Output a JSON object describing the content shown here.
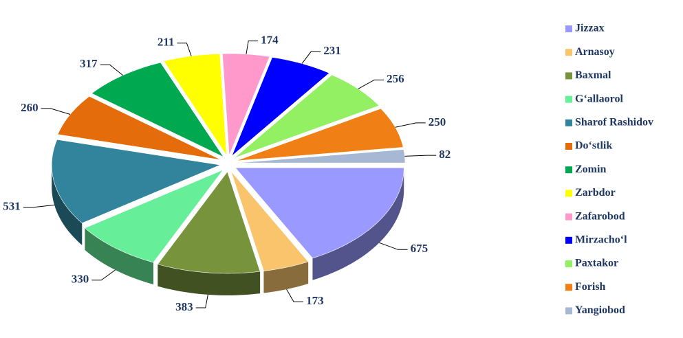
{
  "chart_data": {
    "type": "pie3d",
    "categories": [
      "Jizzax",
      "Arnasoy",
      "Baxmal",
      "G‘allaorol",
      "Sharof Rashidov",
      "Do‘stlik",
      "Zomin",
      "Zarbdor",
      "Zafarobod",
      "Mirzacho‘l",
      "Paxtakor",
      "Forish",
      "Yangiobod"
    ],
    "values": [
      675,
      173,
      383,
      330,
      531,
      260,
      317,
      211,
      174,
      231,
      256,
      250,
      82
    ],
    "colors": [
      "#9999ff",
      "#f9c46b",
      "#77933c",
      "#66ee99",
      "#31849b",
      "#e46c0a",
      "#00a84f",
      "#ffff00",
      "#ff99cc",
      "#0000ff",
      "#92f062",
      "#f07f16",
      "#a6b8d4"
    ],
    "legend": "right"
  }
}
